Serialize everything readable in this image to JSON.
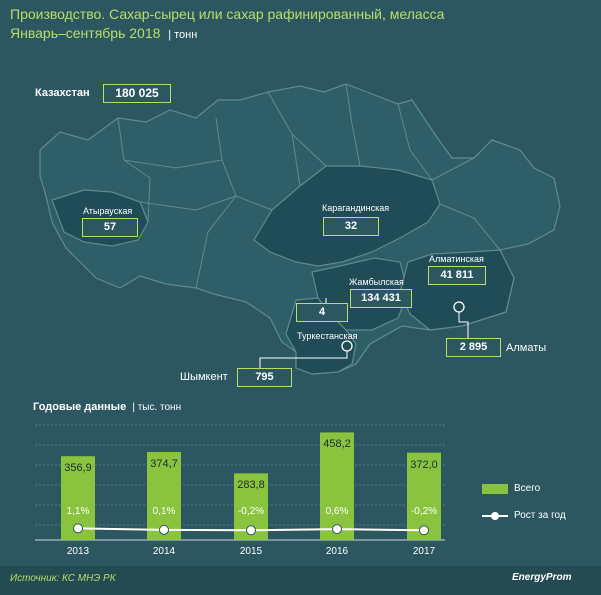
{
  "title": {
    "line1": "Производство. Сахар-сырец или сахар рафинированный, меласса",
    "line2": "Январь–сентябрь 2018",
    "unit": "| тонн"
  },
  "country": {
    "name": "Казахстан",
    "value": "180 025"
  },
  "regions": [
    {
      "name": "Атырауская",
      "value": "57"
    },
    {
      "name": "Карагандинская",
      "value": "32"
    },
    {
      "name": "Алматинская",
      "value": "41 811"
    },
    {
      "name": "Жамбылская",
      "value": "134 431"
    },
    {
      "name": "Туркестанская",
      "value": "4"
    }
  ],
  "cities": [
    {
      "name": "Алматы",
      "value": "2 895"
    },
    {
      "name": "Шымкент",
      "value": "795"
    }
  ],
  "annual": {
    "title": "Годовые данные",
    "unit": "| тыс. тонн"
  },
  "legend": {
    "total": "Всего",
    "growth": "Рост за год"
  },
  "colors": {
    "background": "#2c5760",
    "region": "#2e5e68",
    "highlight": "#1f4c56",
    "accent": "#b9de6a",
    "bar": "#8ac43f"
  },
  "chart_data": {
    "type": "bar",
    "categories": [
      "2013",
      "2014",
      "2015",
      "2016",
      "2017"
    ],
    "series": [
      {
        "name": "Всего",
        "values": [
          356.9,
          374.7,
          283.8,
          458.2,
          372.0
        ],
        "labels": [
          "356,9",
          "374,7",
          "283,8",
          "458,2",
          "372,0"
        ]
      },
      {
        "name": "Рост за год",
        "values": [
          1.1,
          0.1,
          -0.2,
          0.6,
          -0.2
        ],
        "labels": [
          "1,1%",
          "0,1%",
          "-0,2%",
          "0,6%",
          "-0,2%"
        ]
      }
    ],
    "grid": true,
    "legend_position": "right"
  },
  "footer": {
    "source": "Источник: КС МНЭ РК",
    "logo": "EnergyProm"
  }
}
